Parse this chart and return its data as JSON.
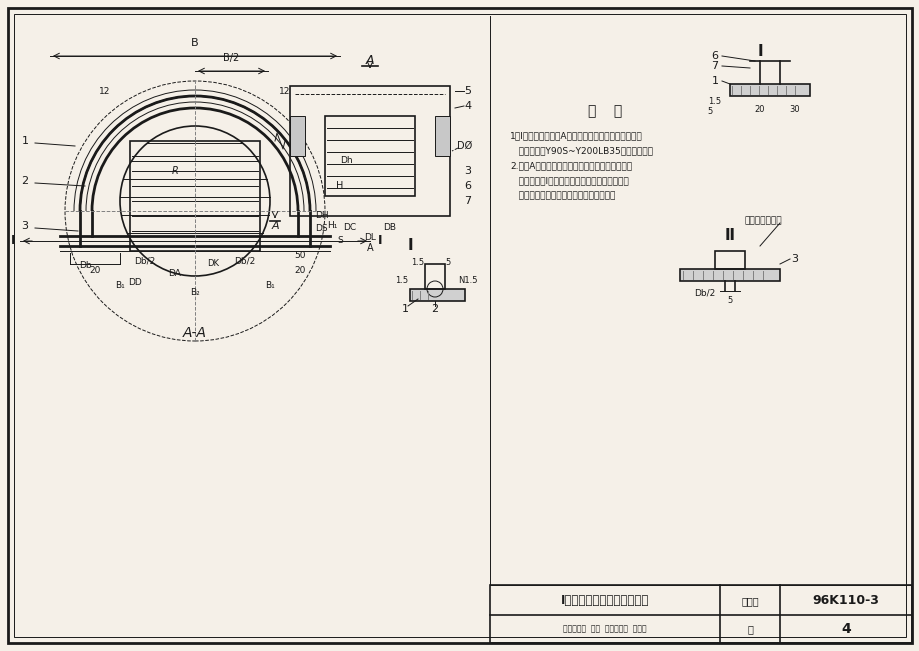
{
  "title": "I型电动机防雨罩总图（一）",
  "figure_number": "96K110-3",
  "page": "4",
  "drawing_label": "图集号",
  "page_label": "页",
  "bg_color": "#f5f0e8",
  "line_color": "#1a1a1a",
  "border_color": "#000000",
  "note_title": "说    明",
  "note_lines": [
    "1．Ⅰ型防雨罩适合于A式（无轴承，电动机直联传动）",
    "   通风机用的Y90S~Y200LB35型的电动机．",
    "2.由于A式通风机传动侧的机壳外面有竖向角钢支",
    "   架两条，故Ⅰ型防雨罩在安装过程中如遇障碍时",
    "   可将罩壳前端相应开凿两槽，以便安装．"
  ],
  "subtitle_row": "审核沈心忻  校对  钟景通设计  郑志修",
  "section_label": "A-A",
  "view_label_front": "A",
  "view_label_side": "A",
  "detail_labels": [
    "Ⅰ",
    "Ⅱ"
  ],
  "motor_label": "电动机防腐螺栓"
}
